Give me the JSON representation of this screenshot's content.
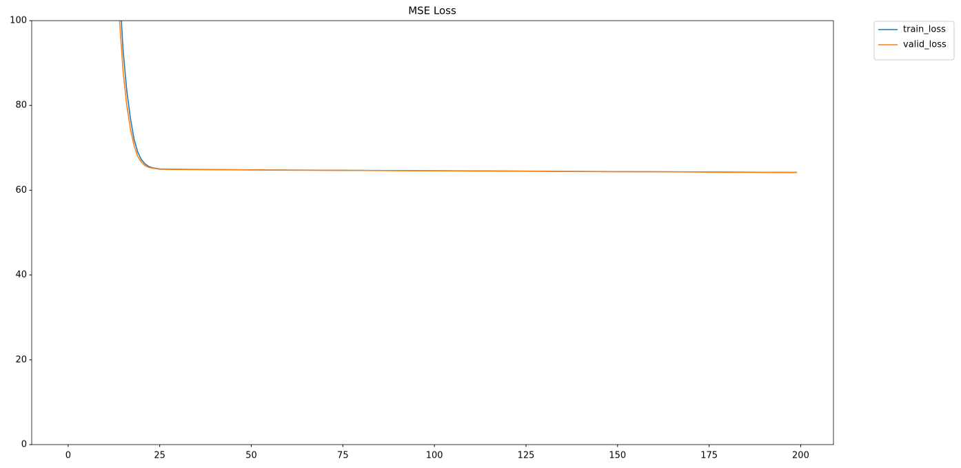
{
  "chart_data": {
    "type": "line",
    "title": "MSE Loss",
    "x": [
      13,
      14,
      15,
      16,
      17,
      18,
      19,
      20,
      21,
      22,
      23,
      25,
      30,
      50,
      75,
      100,
      125,
      150,
      175,
      199
    ],
    "series": [
      {
        "name": "train_loss",
        "color": "#1f77b4",
        "values": [
          130,
          108,
          93,
          83.5,
          77,
          72,
          69,
          67.2,
          66.2,
          65.6,
          65.3,
          65.0,
          64.95,
          64.8,
          64.7,
          64.6,
          64.5,
          64.4,
          64.3,
          64.2
        ]
      },
      {
        "name": "valid_loss",
        "color": "#ff7f0e",
        "values": [
          118,
          100.5,
          88,
          80,
          74.5,
          70.5,
          68,
          66.6,
          65.8,
          65.4,
          65.2,
          64.95,
          64.9,
          64.78,
          64.68,
          64.58,
          64.48,
          64.38,
          64.28,
          64.2
        ]
      }
    ],
    "xlim": [
      -9.95,
      208.95
    ],
    "xticks": [
      0,
      25,
      50,
      75,
      100,
      125,
      150,
      175,
      200
    ],
    "ylim": [
      0,
      100
    ],
    "yticks": [
      0,
      20,
      40,
      60,
      80,
      100
    ],
    "grid": false,
    "legend": "outside-right"
  }
}
